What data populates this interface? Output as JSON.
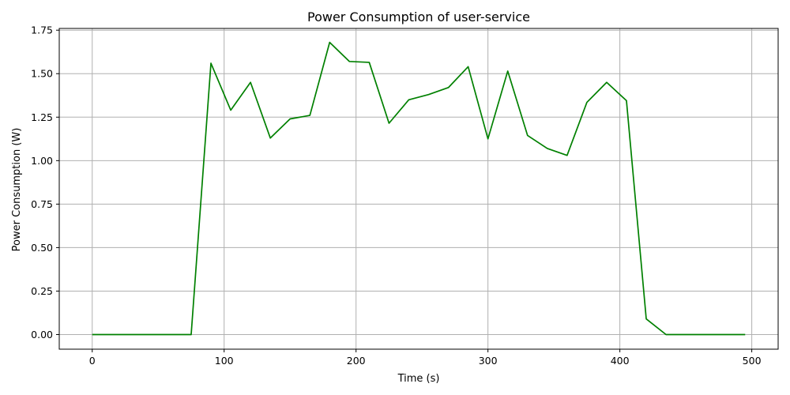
{
  "chart_data": {
    "type": "line",
    "title": "Power Consumption of user-service",
    "xlabel": "Time (s)",
    "ylabel": "Power Consumption (W)",
    "xlim": [
      -25,
      520
    ],
    "ylim": [
      -0.084,
      1.76
    ],
    "xticks": [
      0,
      100,
      200,
      300,
      400,
      500
    ],
    "yticks": [
      0.0,
      0.25,
      0.5,
      0.75,
      1.0,
      1.25,
      1.5,
      1.75
    ],
    "xtick_labels": [
      "0",
      "100",
      "200",
      "300",
      "400",
      "500"
    ],
    "ytick_labels": [
      "0.00",
      "0.25",
      "0.50",
      "0.75",
      "1.00",
      "1.25",
      "1.50",
      "1.75"
    ],
    "grid": true,
    "series": [
      {
        "color": "#008000",
        "x": [
          0,
          15,
          30,
          45,
          60,
          75,
          90,
          105,
          120,
          135,
          150,
          165,
          180,
          195,
          210,
          225,
          240,
          255,
          270,
          285,
          300,
          315,
          330,
          345,
          360,
          375,
          390,
          405,
          420,
          435,
          450,
          465,
          480,
          495
        ],
        "y": [
          0,
          0,
          0,
          0,
          0,
          0,
          1.56,
          1.29,
          1.45,
          1.13,
          1.24,
          1.26,
          1.68,
          1.57,
          1.565,
          1.215,
          1.35,
          1.38,
          1.42,
          1.54,
          1.125,
          1.515,
          1.145,
          1.07,
          1.03,
          1.335,
          1.45,
          1.345,
          0.09,
          0,
          0,
          0,
          0,
          0
        ]
      }
    ]
  }
}
